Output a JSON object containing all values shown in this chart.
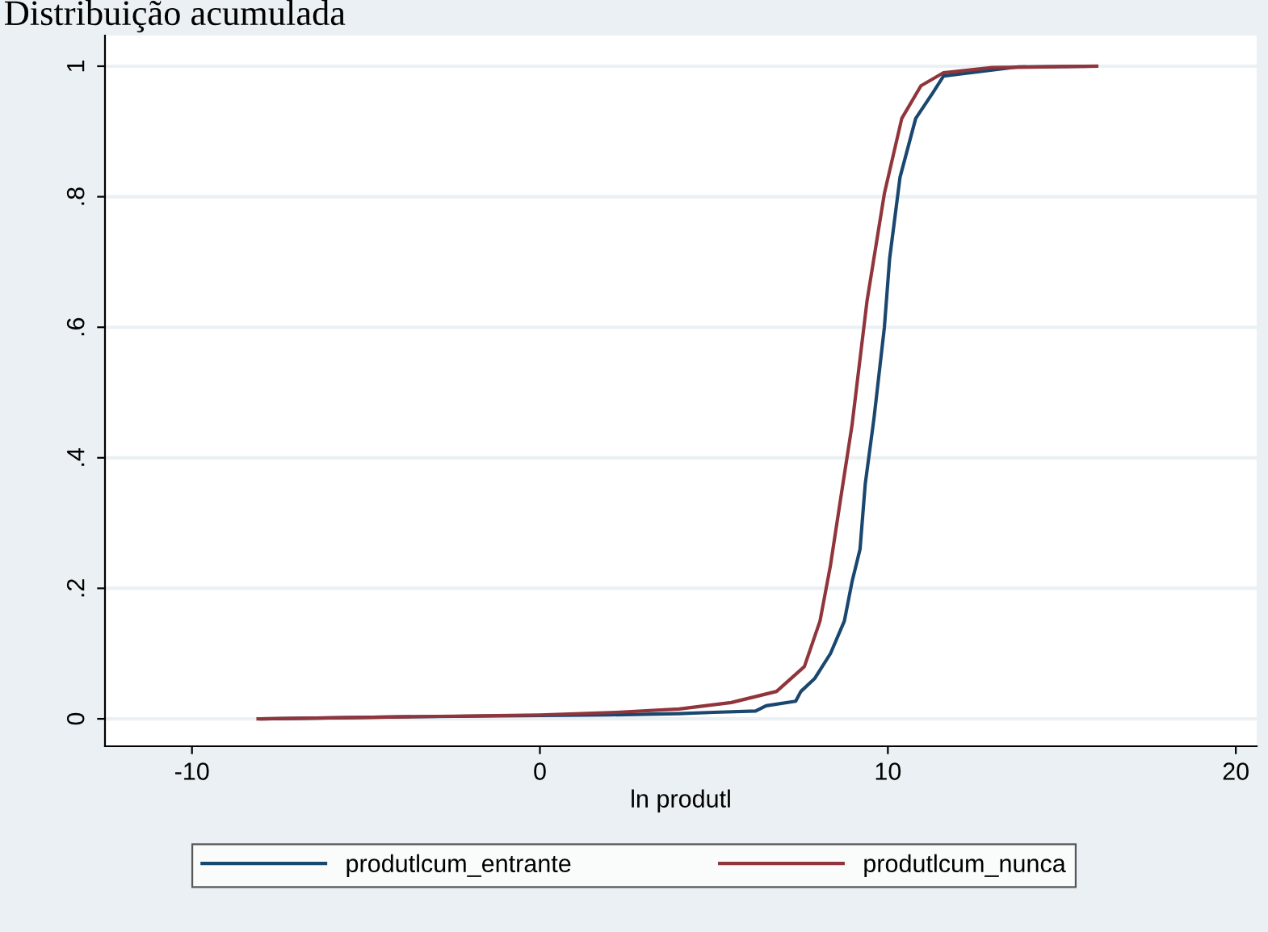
{
  "chart_data": {
    "type": "line",
    "title": "Distribuição acumulada",
    "xlabel": "ln produtl",
    "xlim": [
      -12.5,
      20.6
    ],
    "xticks": [
      -10,
      0,
      10,
      20
    ],
    "ylim": [
      -0.042,
      1.047
    ],
    "yticks": [
      0,
      {
        "value": 0.2,
        "label": ".2"
      },
      {
        "value": 0.4,
        "label": ".4"
      },
      {
        "value": 0.6,
        "label": ".6"
      },
      {
        "value": 0.8,
        "label": ".8"
      },
      1
    ],
    "grid": "y",
    "legend": "bottom",
    "marker": "none",
    "line_style": "solid",
    "series": [
      {
        "name": "produtlcum_entrante",
        "color": "#1a476f",
        "x": [
          -8,
          -4,
          0,
          2,
          4,
          5,
          6.2,
          6.5,
          7.35,
          7.5,
          7.9,
          8.35,
          8.75,
          8.97,
          9.2,
          9.35,
          9.6,
          9.9,
          10.05,
          10.35,
          10.8,
          11.3,
          11.6,
          13.75,
          16
        ],
        "values": [
          0,
          0.003,
          0.005,
          0.006,
          0.008,
          0.01,
          0.012,
          0.02,
          0.027,
          0.042,
          0.062,
          0.1,
          0.15,
          0.21,
          0.26,
          0.36,
          0.46,
          0.6,
          0.705,
          0.83,
          0.92,
          0.96,
          0.985,
          0.999,
          1
        ]
      },
      {
        "name": "produtlcum_nunca",
        "color": "#90353b",
        "x": [
          -8.1,
          -4,
          0,
          2.2,
          4,
          5.5,
          6.8,
          7.6,
          8.05,
          8.35,
          8.65,
          8.97,
          9.4,
          9.9,
          10.4,
          10.95,
          11.6,
          13,
          16
        ],
        "values": [
          0,
          0.003,
          0.006,
          0.01,
          0.015,
          0.025,
          0.042,
          0.08,
          0.15,
          0.235,
          0.34,
          0.45,
          0.64,
          0.805,
          0.92,
          0.97,
          0.99,
          0.998,
          1
        ]
      }
    ]
  }
}
